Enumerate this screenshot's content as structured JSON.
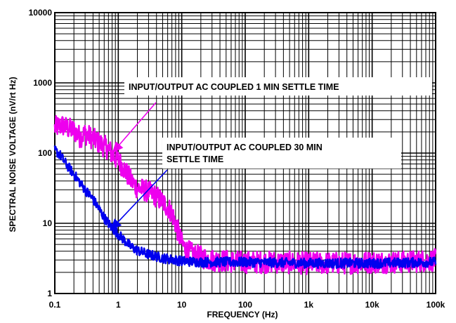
{
  "chart_data": {
    "type": "line",
    "title": "",
    "xlabel": "FREQUENCY (Hz)",
    "ylabel": "SPECTRAL NOISE VOLTAGE (nV/rt Hz)",
    "xscale": "log",
    "yscale": "log",
    "xlim": [
      0.1,
      100000
    ],
    "ylim": [
      1,
      10000
    ],
    "grid": true,
    "x_tick_labels": [
      "0.1",
      "1",
      "10",
      "100",
      "1k",
      "10k",
      "100k"
    ],
    "y_tick_labels": [
      "1",
      "10",
      "100",
      "1000",
      "10000"
    ],
    "annotations": [
      {
        "id": "magenta-label",
        "text": "INPUT/OUTPUT AC COUPLED 1 MIN SETTLE TIME",
        "series": "magenta",
        "arrow_to": [
          0.8,
          100
        ]
      },
      {
        "id": "blue-label",
        "lines": [
          "INPUT/OUTPUT AC COUPLED 30 MIN",
          "SETTLE TIME"
        ],
        "series": "blue",
        "arrow_to": [
          0.75,
          8
        ]
      }
    ],
    "series": [
      {
        "color": "#ee00ee",
        "noise": 0.16,
        "points": [
          [
            0.1,
            230
          ],
          [
            0.13,
            250
          ],
          [
            0.16,
            225
          ],
          [
            0.2,
            210
          ],
          [
            0.25,
            170
          ],
          [
            0.3,
            190
          ],
          [
            0.4,
            160
          ],
          [
            0.5,
            140
          ],
          [
            0.6,
            125
          ],
          [
            0.7,
            115
          ],
          [
            0.8,
            95
          ],
          [
            0.9,
            85
          ],
          [
            1,
            80
          ],
          [
            1.3,
            55
          ],
          [
            1.6,
            40
          ],
          [
            2,
            32
          ],
          [
            2.5,
            30
          ],
          [
            3,
            28
          ],
          [
            4,
            24
          ],
          [
            5,
            20
          ],
          [
            6,
            17
          ],
          [
            7,
            14
          ],
          [
            8,
            10
          ],
          [
            9,
            7
          ],
          [
            10,
            5.2
          ],
          [
            12,
            4.1
          ],
          [
            15,
            3.6
          ],
          [
            20,
            3.3
          ],
          [
            30,
            3.0
          ],
          [
            50,
            2.9
          ],
          [
            100,
            2.8
          ],
          [
            300,
            2.8
          ],
          [
            1000,
            2.7
          ],
          [
            3000,
            2.7
          ],
          [
            10000,
            2.8
          ],
          [
            30000,
            2.8
          ],
          [
            100000,
            3.0
          ]
        ]
      },
      {
        "color": "#0000ee",
        "noise": 0.07,
        "points": [
          [
            0.1,
            110
          ],
          [
            0.12,
            95
          ],
          [
            0.15,
            70
          ],
          [
            0.2,
            50
          ],
          [
            0.25,
            38
          ],
          [
            0.3,
            30
          ],
          [
            0.4,
            22
          ],
          [
            0.5,
            16
          ],
          [
            0.6,
            12
          ],
          [
            0.7,
            10
          ],
          [
            0.8,
            8.5
          ],
          [
            1,
            7
          ],
          [
            1.3,
            5.5
          ],
          [
            1.6,
            4.6
          ],
          [
            2,
            4.1
          ],
          [
            3,
            3.6
          ],
          [
            5,
            3.2
          ],
          [
            10,
            2.9
          ],
          [
            20,
            2.8
          ],
          [
            100,
            2.8
          ],
          [
            1000,
            2.7
          ],
          [
            10000,
            2.7
          ],
          [
            100000,
            2.8
          ]
        ]
      }
    ]
  }
}
